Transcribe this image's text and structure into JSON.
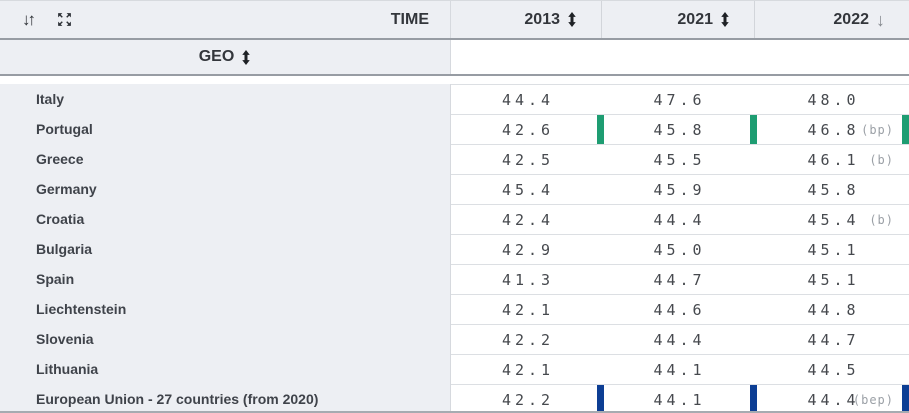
{
  "header": {
    "time_label": "TIME",
    "geo_label": "GEO",
    "sort_rows_glyph": "↓↑",
    "sorted_desc_glyph": "↓",
    "columns": [
      {
        "label": "2013",
        "sort_state": "sortable"
      },
      {
        "label": "2021",
        "sort_state": "sortable"
      },
      {
        "label": "2022",
        "sort_state": "sorted-desc"
      }
    ]
  },
  "colors": {
    "break_green": "#1e9d72",
    "break_blue": "#0d3e94",
    "header_bg": "#edeff3"
  },
  "table": {
    "rows": [
      {
        "geo": "Italy",
        "values": [
          "44.4",
          "47.6",
          "48.0"
        ],
        "flag": "",
        "bar": null
      },
      {
        "geo": "Portugal",
        "values": [
          "42.6",
          "45.8",
          "46.8"
        ],
        "flag": "(bp)",
        "bar": "break_green"
      },
      {
        "geo": "Greece",
        "values": [
          "42.5",
          "45.5",
          "46.1"
        ],
        "flag": "(b)",
        "bar": null
      },
      {
        "geo": "Germany",
        "values": [
          "45.4",
          "45.9",
          "45.8"
        ],
        "flag": "",
        "bar": null
      },
      {
        "geo": "Croatia",
        "values": [
          "42.4",
          "44.4",
          "45.4"
        ],
        "flag": "(b)",
        "bar": null
      },
      {
        "geo": "Bulgaria",
        "values": [
          "42.9",
          "45.0",
          "45.1"
        ],
        "flag": "",
        "bar": null
      },
      {
        "geo": "Spain",
        "values": [
          "41.3",
          "44.7",
          "45.1"
        ],
        "flag": "",
        "bar": null
      },
      {
        "geo": "Liechtenstein",
        "values": [
          "42.1",
          "44.6",
          "44.8"
        ],
        "flag": "",
        "bar": null
      },
      {
        "geo": "Slovenia",
        "values": [
          "42.2",
          "44.4",
          "44.7"
        ],
        "flag": "",
        "bar": null
      },
      {
        "geo": "Lithuania",
        "values": [
          "42.1",
          "44.1",
          "44.5"
        ],
        "flag": "",
        "bar": null
      },
      {
        "geo": "European Union - 27 countries (from 2020)",
        "values": [
          "42.2",
          "44.1",
          "44.4"
        ],
        "flag": "(bep)",
        "bar": "break_blue"
      }
    ]
  }
}
